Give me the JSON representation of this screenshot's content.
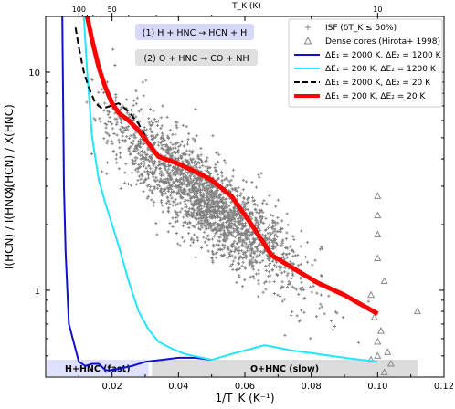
{
  "chart_data": {
    "type": "line",
    "xlabel": "1/T_K (K⁻¹)",
    "ylabel_left": "I(HCN) / I(HNC)",
    "ylabel_right": "X(HCN) / X(HNC)",
    "top_axis_label": "T_K (K)",
    "xlim": [
      0.0,
      0.12
    ],
    "ylim": [
      0.4,
      18
    ],
    "y_scale": "log",
    "x_ticks": [
      "0.02",
      "0.04",
      "0.06",
      "0.08",
      "0.10",
      "0.12"
    ],
    "y_ticks": [
      "1",
      "10"
    ],
    "top_ticks": [
      "100",
      "50",
      "10"
    ],
    "annotations": [
      "(1) H + HNC → HCN + H",
      "(2) O + HNC → CO + NH"
    ],
    "regions": [
      {
        "label": "H+HNC (fast)",
        "x": [
          0.0,
          0.031
        ],
        "color": "#e0e0ff"
      },
      {
        "label": "O+HNC (slow)",
        "x": [
          0.032,
          0.112
        ],
        "color": "#dcdcdc"
      }
    ],
    "legend": [
      {
        "label": "ISF (δT_K ≤ 50%)",
        "marker": "plus",
        "color": "#888888"
      },
      {
        "label": "Dense cores (Hirota+ 1998)",
        "marker": "triangle",
        "color": "#888888"
      },
      {
        "label": "ΔE₁ = 2000 K, ΔE₂ = 1200 K",
        "color": "#1111cc",
        "dash": "solid"
      },
      {
        "label": "ΔE₁ = 200 K, ΔE₂ = 1200 K",
        "color": "#22e5ff",
        "dash": "solid"
      },
      {
        "label": "ΔE₁ = 2000 K, ΔE₂ = 20 K",
        "color": "#000000",
        "dash": "dashed"
      },
      {
        "label": "ΔE₁ = 200 K, ΔE₂ = 20 K",
        "color": "#ff0000",
        "dash": "solid"
      }
    ],
    "series": [
      {
        "name": "ΔE₁ = 2000 K, ΔE₂ = 1200 K",
        "color": "#1111cc",
        "dash": "solid",
        "width": 2,
        "x": [
          0.005,
          0.0055,
          0.006,
          0.007,
          0.01,
          0.012,
          0.014,
          0.016,
          0.018,
          0.02,
          0.023,
          0.026,
          0.03,
          0.035,
          0.04,
          0.045,
          0.05
        ],
        "y": [
          18,
          3.0,
          1.5,
          0.7,
          0.47,
          0.45,
          0.46,
          0.46,
          0.43,
          0.43,
          0.44,
          0.45,
          0.47,
          0.48,
          0.49,
          0.49,
          0.48
        ]
      },
      {
        "name": "ΔE₁ = 200 K, ΔE₂ = 1200 K",
        "color": "#22e5ff",
        "dash": "solid",
        "width": 2,
        "x": [
          0.0115,
          0.0125,
          0.014,
          0.016,
          0.018,
          0.02,
          0.022,
          0.025,
          0.028,
          0.031,
          0.034,
          0.038,
          0.042,
          0.05,
          0.058,
          0.066,
          0.074,
          0.082,
          0.09,
          0.1
        ],
        "y": [
          18,
          10,
          5.0,
          3.2,
          2.5,
          2.0,
          1.6,
          1.1,
          0.8,
          0.66,
          0.58,
          0.54,
          0.51,
          0.48,
          0.52,
          0.56,
          0.53,
          0.51,
          0.49,
          0.47
        ]
      },
      {
        "name": "ΔE₁ = 2000 K, ΔE₂ = 20 K",
        "color": "#000000",
        "dash": "dashed",
        "width": 2,
        "x": [
          0.009,
          0.01,
          0.0115,
          0.013,
          0.015,
          0.017,
          0.0195,
          0.022,
          0.025,
          0.028,
          0.031,
          0.034,
          0.04,
          0.045,
          0.05,
          0.056,
          0.062,
          0.068,
          0.075,
          0.082,
          0.09,
          0.1
        ],
        "y": [
          16,
          13,
          10,
          8.5,
          7.2,
          6.8,
          7.0,
          7.2,
          6.6,
          5.8,
          4.8,
          4.1,
          3.8,
          3.5,
          3.2,
          2.7,
          2.0,
          1.45,
          1.25,
          1.08,
          0.95,
          0.78
        ]
      },
      {
        "name": "ΔE₁ = 200 K, ΔE₂ = 20 K",
        "color": "#ff0000",
        "dash": "solid",
        "width": 5,
        "x": [
          0.0125,
          0.014,
          0.016,
          0.018,
          0.02,
          0.022,
          0.025,
          0.028,
          0.031,
          0.034,
          0.04,
          0.045,
          0.05,
          0.056,
          0.062,
          0.068,
          0.075,
          0.082,
          0.09,
          0.1
        ],
        "y": [
          18,
          14,
          10.5,
          8.5,
          7.2,
          6.5,
          6.0,
          5.4,
          4.7,
          4.1,
          3.8,
          3.5,
          3.2,
          2.7,
          2.0,
          1.45,
          1.25,
          1.08,
          0.95,
          0.78
        ]
      }
    ],
    "dense_cores": {
      "marker": "triangle",
      "x": [
        0.1,
        0.1,
        0.1,
        0.1,
        0.102,
        0.098,
        0.099,
        0.101,
        0.1,
        0.103,
        0.104,
        0.112,
        0.1,
        0.102,
        0.098,
        0.1
      ],
      "y": [
        2.7,
        2.2,
        1.8,
        1.4,
        1.1,
        0.95,
        0.75,
        0.65,
        0.58,
        0.52,
        0.46,
        0.8,
        0.5,
        0.42,
        0.48,
        0.36
      ]
    },
    "isf_cloud": {
      "marker": "plus",
      "color": "#808080",
      "n_points": 2200,
      "x_center": 0.048,
      "x_spread": 0.014,
      "trend_slope": -0.8,
      "trend_y_at_center": 2.6,
      "scatter_dex": 0.1
    }
  }
}
